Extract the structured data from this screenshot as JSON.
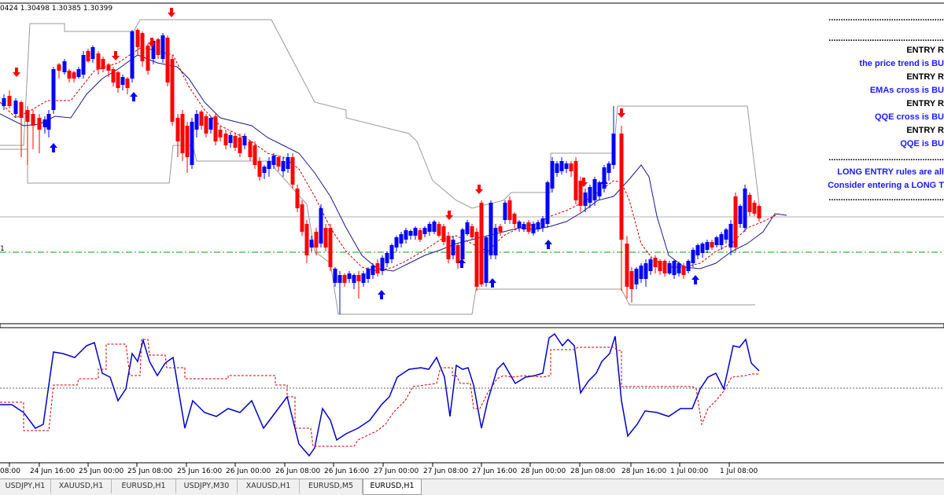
{
  "ohlc_readout": "0424 1.30498 1.30385 1.30399",
  "price_label_left": "1",
  "rules": [
    {
      "kind": "dots",
      "text": "................................................"
    },
    {
      "kind": "dots",
      "text": "................................................"
    },
    {
      "kind": "head",
      "text": "ENTRY R"
    },
    {
      "kind": "text",
      "text": "the price trend is BU"
    },
    {
      "kind": "head",
      "text": "ENTRY R"
    },
    {
      "kind": "text",
      "text": "EMAs cross is BU"
    },
    {
      "kind": "head",
      "text": "ENTRY R"
    },
    {
      "kind": "text",
      "text": "QQE cross is BU"
    },
    {
      "kind": "head",
      "text": "ENTRY R"
    },
    {
      "kind": "text",
      "text": "QQE is BU"
    },
    {
      "kind": "dots",
      "text": "................................................"
    },
    {
      "kind": "text",
      "text": "LONG ENTRY rules are all"
    },
    {
      "kind": "text",
      "text": "Consider entering a LONG T"
    },
    {
      "kind": "dots",
      "text": "................................................"
    }
  ],
  "time_axis": [
    "08:00",
    "24 Jun 16:00",
    "25 Jun 00:00",
    "25 Jun 08:00",
    "25 Jun 16:00",
    "26 Jun 00:00",
    "26 Jun 08:00",
    "26 Jun 16:00",
    "27 Jun 00:00",
    "27 Jun 08:00",
    "27 Jun 16:00",
    "28 Jun 00:00",
    "28 Jun 08:00",
    "28 Jun 16:00",
    "1 Jul 00:00",
    "1 Jul 08:00"
  ],
  "tabs": [
    {
      "label": "USDJPY,H1",
      "active": false
    },
    {
      "label": "XAUUSD,H1",
      "active": false
    },
    {
      "label": "EURUSD,H1",
      "active": false
    },
    {
      "label": "USDJPY,M30",
      "active": false
    },
    {
      "label": "XAUUSD,H1",
      "active": false
    },
    {
      "label": "EURUSD,M5",
      "active": false
    },
    {
      "label": "EURUSD,H1",
      "active": true
    }
  ],
  "colors": {
    "bull": "#0000ff",
    "bear": "#ff0000",
    "qqe_line": "#0000cc",
    "qqe_signal": "#cc0000",
    "hline_green": "#00a000",
    "arrow_up": "#0000ff",
    "arrow_down": "#ff0000"
  }
}
